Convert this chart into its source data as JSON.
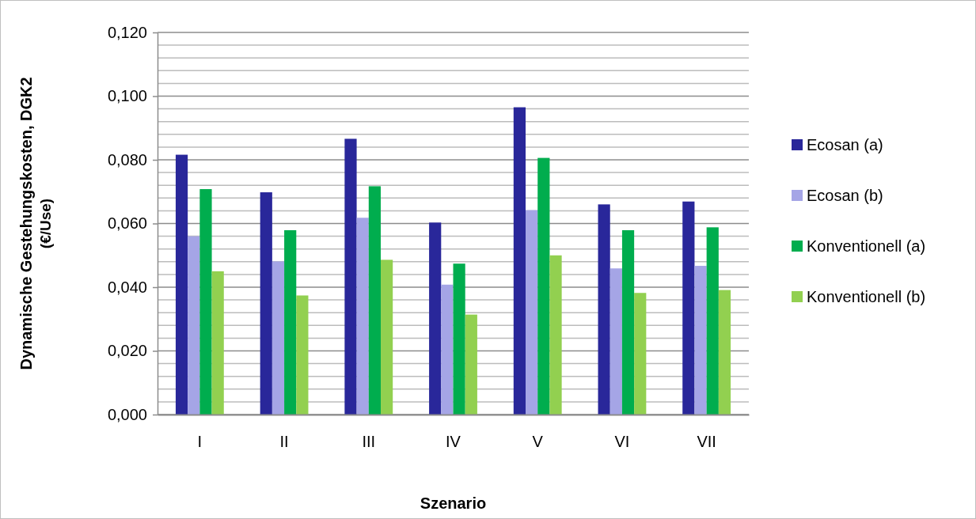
{
  "chart_data": {
    "type": "bar",
    "xlabel": "Szenario",
    "ylabel": "Dynamische Gestehungskosten, DGK2 (€/Use)",
    "categories": [
      "I",
      "II",
      "III",
      "IV",
      "V",
      "VI",
      "VII"
    ],
    "series": [
      {
        "name": "Ecosan (a)",
        "color": "#29279a",
        "values": [
          0.0816,
          0.0698,
          0.0866,
          0.0603,
          0.0965,
          0.066,
          0.0669
        ]
      },
      {
        "name": "Ecosan (b)",
        "color": "#a5a5e6",
        "values": [
          0.056,
          0.0481,
          0.0618,
          0.0408,
          0.0642,
          0.0459,
          0.0467
        ]
      },
      {
        "name": "Konventionell (a)",
        "color": "#00ad4e",
        "values": [
          0.0708,
          0.0579,
          0.0717,
          0.0474,
          0.0806,
          0.0579,
          0.0588
        ]
      },
      {
        "name": "Konventionell (b)",
        "color": "#92d050",
        "values": [
          0.045,
          0.0374,
          0.0486,
          0.0314,
          0.05,
          0.0382,
          0.0391
        ]
      }
    ],
    "ylim": [
      0,
      0.12
    ],
    "yticks": [
      {
        "value": 0,
        "label": "0,000"
      },
      {
        "value": 0.004,
        "label": null
      },
      {
        "value": 0.008,
        "label": null
      },
      {
        "value": 0.012,
        "label": null
      },
      {
        "value": 0.016,
        "label": null
      },
      {
        "value": 0.02,
        "label": "0,020"
      },
      {
        "value": 0.024,
        "label": null
      },
      {
        "value": 0.028,
        "label": null
      },
      {
        "value": 0.032,
        "label": null
      },
      {
        "value": 0.036,
        "label": null
      },
      {
        "value": 0.04,
        "label": "0,040"
      },
      {
        "value": 0.044,
        "label": null
      },
      {
        "value": 0.048,
        "label": null
      },
      {
        "value": 0.052,
        "label": null
      },
      {
        "value": 0.056,
        "label": null
      },
      {
        "value": 0.06,
        "label": "0,060"
      },
      {
        "value": 0.064,
        "label": null
      },
      {
        "value": 0.068,
        "label": null
      },
      {
        "value": 0.072,
        "label": null
      },
      {
        "value": 0.076,
        "label": null
      },
      {
        "value": 0.08,
        "label": "0,080"
      },
      {
        "value": 0.084,
        "label": null
      },
      {
        "value": 0.088,
        "label": null
      },
      {
        "value": 0.092,
        "label": null
      },
      {
        "value": 0.096,
        "label": null
      },
      {
        "value": 0.1,
        "label": "0,100"
      },
      {
        "value": 0.104,
        "label": null
      },
      {
        "value": 0.108,
        "label": null
      },
      {
        "value": 0.112,
        "label": null
      },
      {
        "value": 0.116,
        "label": null
      },
      {
        "value": 0.12,
        "label": "0,120"
      }
    ],
    "grid": true,
    "legend": "right"
  }
}
